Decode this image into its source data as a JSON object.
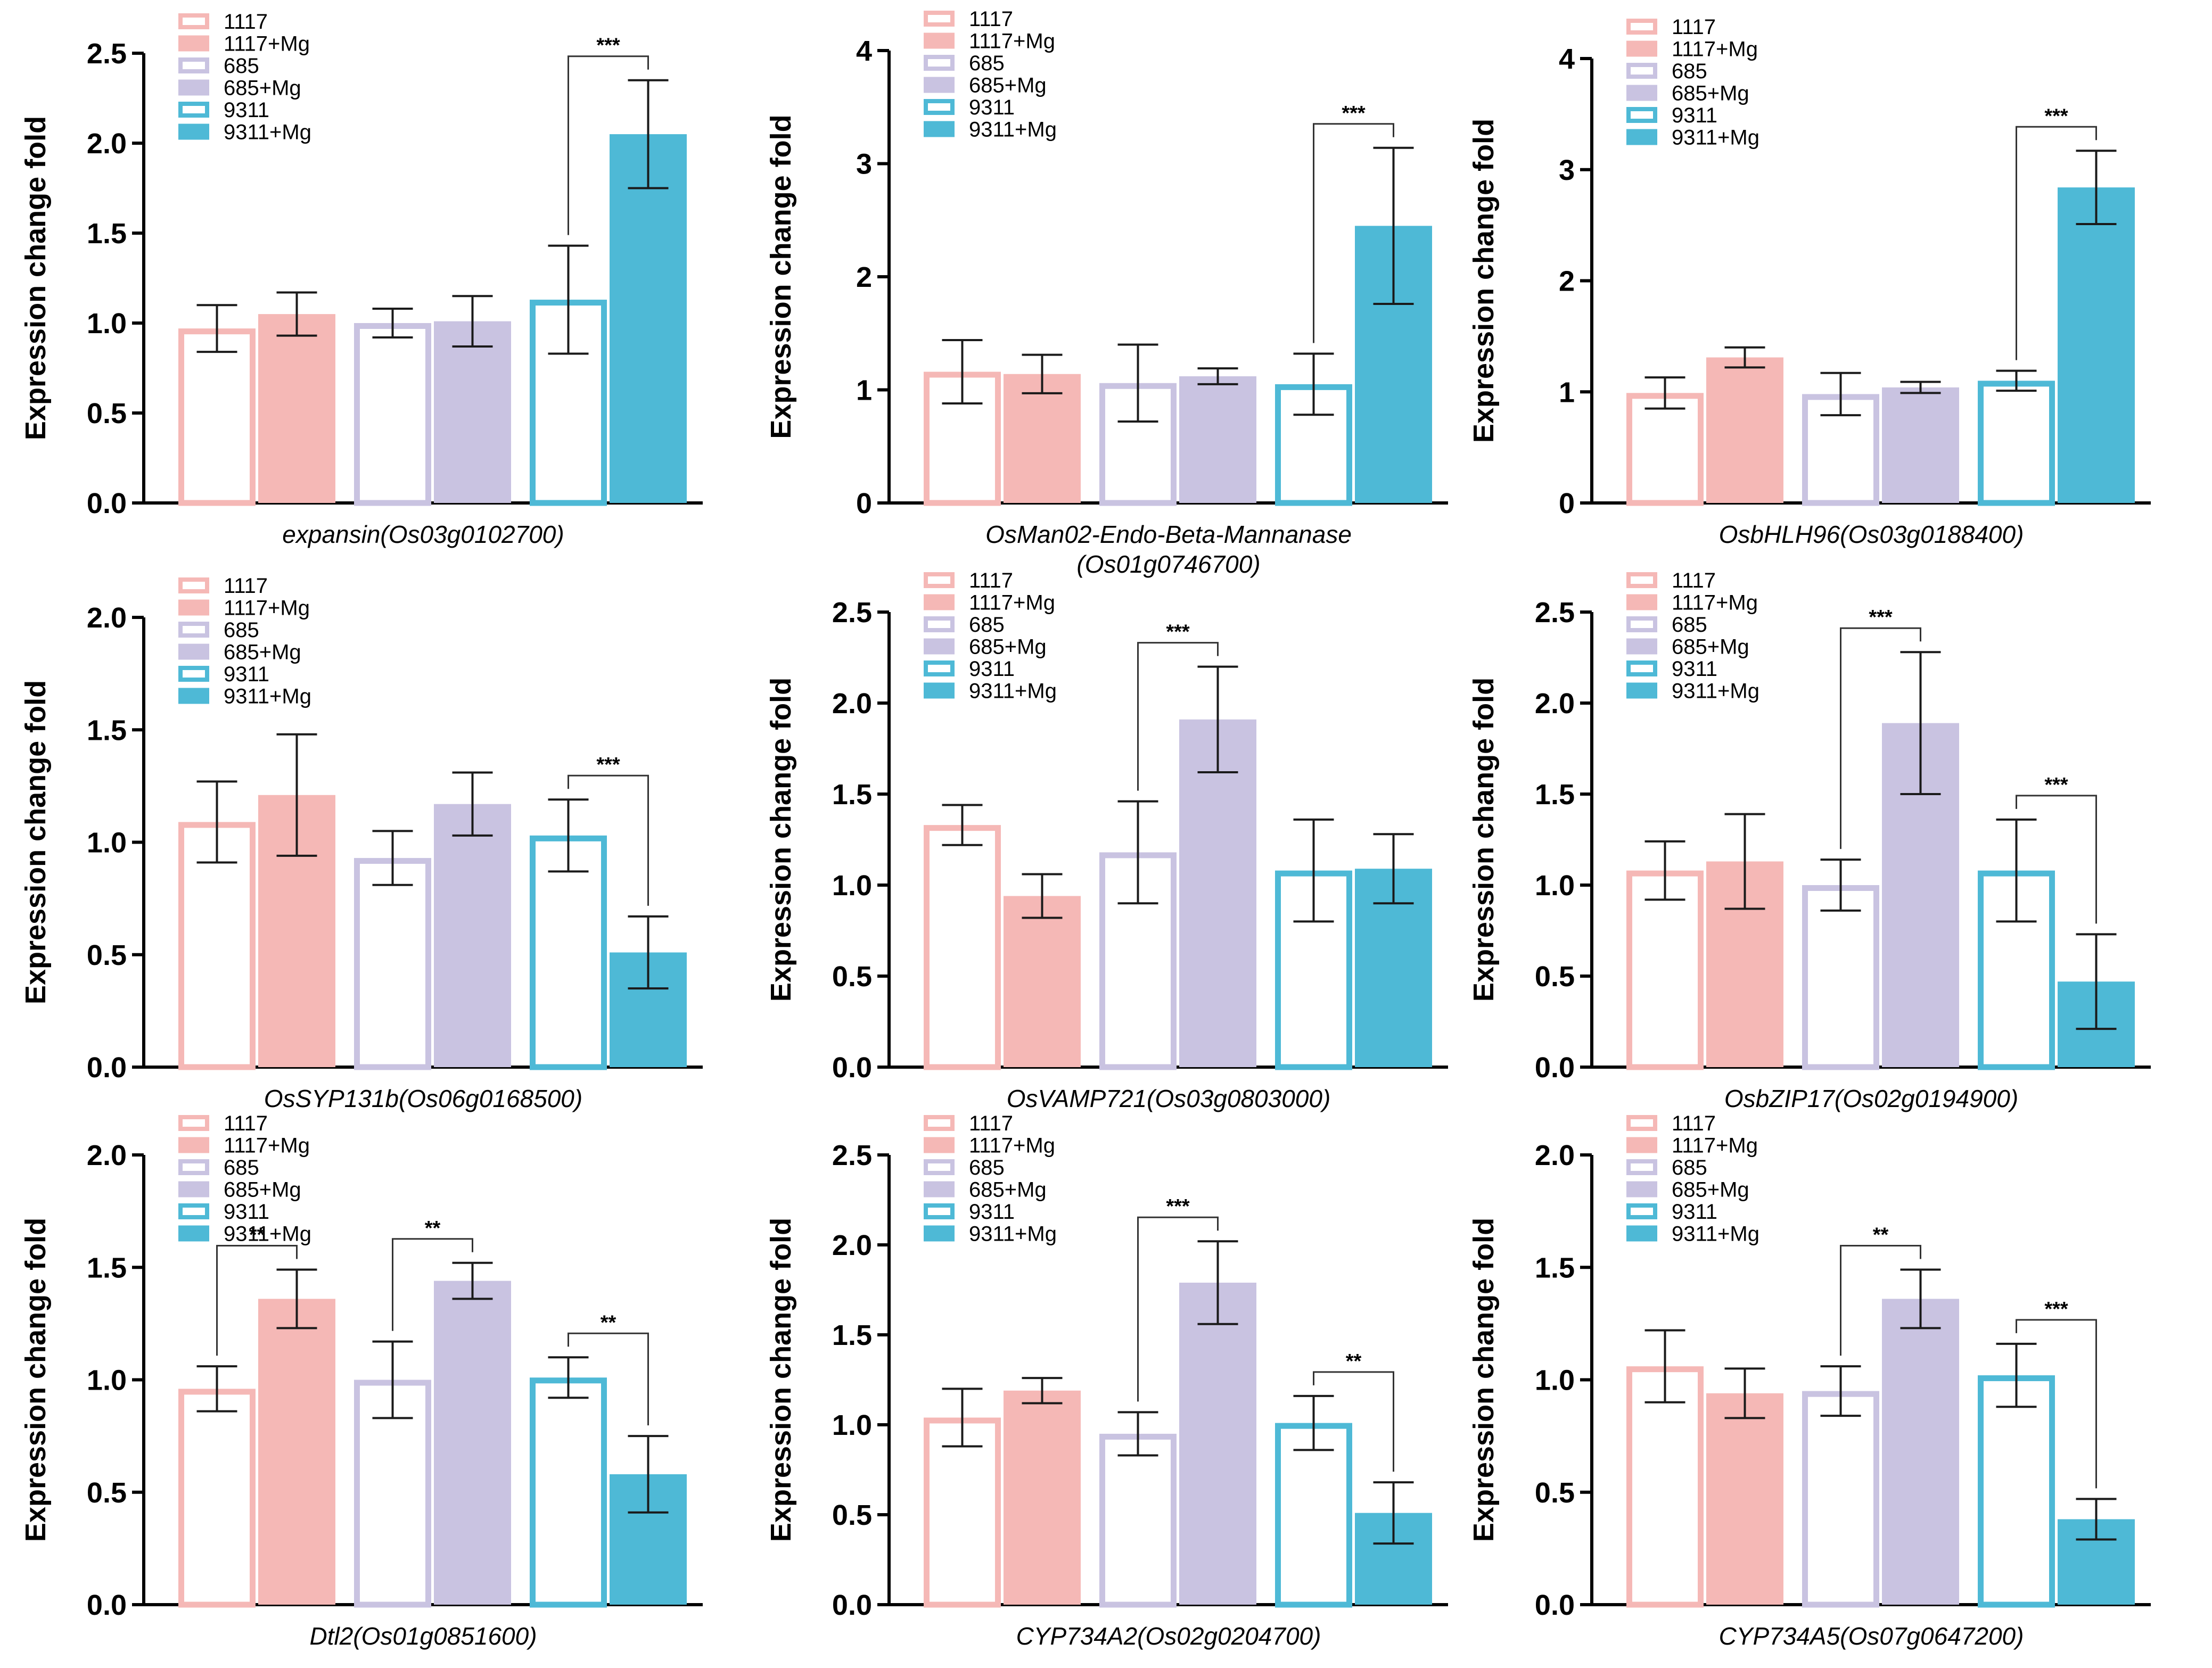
{
  "figure": {
    "description_free": true
  },
  "style": {
    "groups": [
      {
        "name": "1117",
        "color": "#f5b8b6"
      },
      {
        "name": "685",
        "color": "#c9c3e1"
      },
      {
        "name": "9311",
        "color": "#4eb9d6"
      }
    ],
    "axis_color": "#000000",
    "error_bar_color": "#1a1a1a"
  },
  "legend_labels": [
    "1117",
    "1117+Mg",
    "685",
    "685+Mg",
    "9311",
    "9311+Mg"
  ],
  "ylabel": "Expression change fold",
  "chart_data": [
    {
      "type": "bar",
      "title": "",
      "xlabel": [
        "expansin(Os03g0102700)"
      ],
      "ylabel": "Expression change fold",
      "categories": [
        "1117",
        "1117+Mg",
        "685",
        "685+Mg",
        "9311",
        "9311+Mg"
      ],
      "values": [
        0.97,
        1.05,
        1.0,
        1.01,
        1.13,
        2.05
      ],
      "errors": [
        0.13,
        0.12,
        0.08,
        0.14,
        0.3,
        0.3
      ],
      "ylim": [
        0,
        2.5
      ],
      "yticks": [
        "0.0",
        "0.5",
        "1.0",
        "1.5",
        "2.0",
        "2.5"
      ],
      "tick_values": [
        0,
        0.5,
        1.0,
        1.5,
        2.0,
        2.5
      ],
      "significance": [
        {
          "from": 4,
          "to": 5,
          "label": "***"
        }
      ]
    },
    {
      "type": "bar",
      "title": "",
      "xlabel": [
        "OsMan02-Endo-Beta-Mannanase",
        "(Os01g0746700)"
      ],
      "ylabel": "Expression change fold",
      "categories": [
        "1117",
        "1117+Mg",
        "685",
        "685+Mg",
        "9311",
        "9311+Mg"
      ],
      "values": [
        1.16,
        1.14,
        1.06,
        1.12,
        1.05,
        2.45
      ],
      "errors": [
        0.28,
        0.17,
        0.34,
        0.07,
        0.27,
        0.69
      ],
      "ylim": [
        0,
        4
      ],
      "yticks": [
        "0",
        "1",
        "2",
        "3",
        "4"
      ],
      "tick_values": [
        0,
        1,
        2,
        3,
        4
      ],
      "significance": [
        {
          "from": 4,
          "to": 5,
          "label": "***"
        }
      ]
    },
    {
      "type": "bar",
      "title": "",
      "xlabel": [
        "OsbHLH96(Os03g0188400)"
      ],
      "ylabel": "Expression change fold",
      "categories": [
        "1117",
        "1117+Mg",
        "685",
        "685+Mg",
        "9311",
        "9311+Mg"
      ],
      "values": [
        0.99,
        1.31,
        0.98,
        1.04,
        1.1,
        2.84
      ],
      "errors": [
        0.14,
        0.09,
        0.19,
        0.05,
        0.09,
        0.33
      ],
      "ylim": [
        0,
        4
      ],
      "yticks": [
        "0",
        "1",
        "2",
        "3",
        "4"
      ],
      "tick_values": [
        0,
        1,
        2,
        3,
        4
      ],
      "significance": [
        {
          "from": 4,
          "to": 5,
          "label": "***"
        }
      ]
    },
    {
      "type": "bar",
      "title": "",
      "xlabel": [
        "OsSYP131b(Os06g0168500)"
      ],
      "ylabel": "Expression change fold",
      "categories": [
        "1117",
        "1117+Mg",
        "685",
        "685+Mg",
        "9311",
        "9311+Mg"
      ],
      "values": [
        1.09,
        1.21,
        0.93,
        1.17,
        1.03,
        0.51
      ],
      "errors": [
        0.18,
        0.27,
        0.12,
        0.14,
        0.16,
        0.16
      ],
      "ylim": [
        0,
        2.0
      ],
      "yticks": [
        "0.0",
        "0.5",
        "1.0",
        "1.5",
        "2.0"
      ],
      "tick_values": [
        0,
        0.5,
        1.0,
        1.5,
        2.0
      ],
      "significance": [
        {
          "from": 4,
          "to": 5,
          "label": "***"
        }
      ]
    },
    {
      "type": "bar",
      "title": "",
      "xlabel": [
        "OsVAMP721(Os03g0803000)"
      ],
      "ylabel": "Expression change fold",
      "categories": [
        "1117",
        "1117+Mg",
        "685",
        "685+Mg",
        "9311",
        "9311+Mg"
      ],
      "values": [
        1.33,
        0.94,
        1.18,
        1.91,
        1.08,
        1.09
      ],
      "errors": [
        0.11,
        0.12,
        0.28,
        0.29,
        0.28,
        0.19
      ],
      "ylim": [
        0,
        2.5
      ],
      "yticks": [
        "0.0",
        "0.5",
        "1.0",
        "1.5",
        "2.0",
        "2.5"
      ],
      "tick_values": [
        0,
        0.5,
        1.0,
        1.5,
        2.0,
        2.5
      ],
      "significance": [
        {
          "from": 2,
          "to": 3,
          "label": "***"
        }
      ]
    },
    {
      "type": "bar",
      "title": "",
      "xlabel": [
        "OsbZIP17(Os02g0194900)"
      ],
      "ylabel": "Expression change fold",
      "categories": [
        "1117",
        "1117+Mg",
        "685",
        "685+Mg",
        "9311",
        "9311+Mg"
      ],
      "values": [
        1.08,
        1.13,
        1.0,
        1.89,
        1.08,
        0.47
      ],
      "errors": [
        0.16,
        0.26,
        0.14,
        0.39,
        0.28,
        0.26
      ],
      "ylim": [
        0,
        2.5
      ],
      "yticks": [
        "0.0",
        "0.5",
        "1.0",
        "1.5",
        "2.0",
        "2.5"
      ],
      "tick_values": [
        0,
        0.5,
        1.0,
        1.5,
        2.0,
        2.5
      ],
      "significance": [
        {
          "from": 2,
          "to": 3,
          "label": "***"
        },
        {
          "from": 4,
          "to": 5,
          "label": "***"
        }
      ]
    },
    {
      "type": "bar",
      "title": "",
      "xlabel": [
        "Dtl2(Os01g0851600)"
      ],
      "ylabel": "Expression change fold",
      "categories": [
        "1117",
        "1117+Mg",
        "685",
        "685+Mg",
        "9311",
        "9311+Mg"
      ],
      "values": [
        0.96,
        1.36,
        1.0,
        1.44,
        1.01,
        0.58
      ],
      "errors": [
        0.1,
        0.13,
        0.17,
        0.08,
        0.09,
        0.17
      ],
      "ylim": [
        0,
        2.0
      ],
      "yticks": [
        "0.0",
        "0.5",
        "1.0",
        "1.5",
        "2.0"
      ],
      "tick_values": [
        0,
        0.5,
        1.0,
        1.5,
        2.0
      ],
      "significance": [
        {
          "from": 0,
          "to": 1,
          "label": "**"
        },
        {
          "from": 2,
          "to": 3,
          "label": "**"
        },
        {
          "from": 4,
          "to": 5,
          "label": "**"
        }
      ]
    },
    {
      "type": "bar",
      "title": "",
      "xlabel": [
        "CYP734A2(Os02g0204700)"
      ],
      "ylabel": "Expression change fold",
      "categories": [
        "1117",
        "1117+Mg",
        "685",
        "685+Mg",
        "9311",
        "9311+Mg"
      ],
      "values": [
        1.04,
        1.19,
        0.95,
        1.79,
        1.01,
        0.51
      ],
      "errors": [
        0.16,
        0.07,
        0.12,
        0.23,
        0.15,
        0.17
      ],
      "ylim": [
        0,
        2.5
      ],
      "yticks": [
        "0.0",
        "0.5",
        "1.0",
        "1.5",
        "2.0",
        "2.5"
      ],
      "tick_values": [
        0,
        0.5,
        1.0,
        1.5,
        2.0,
        2.5
      ],
      "significance": [
        {
          "from": 2,
          "to": 3,
          "label": "***"
        },
        {
          "from": 4,
          "to": 5,
          "label": "**"
        }
      ]
    },
    {
      "type": "bar",
      "title": "",
      "xlabel": [
        "CYP734A5(Os07g0647200)"
      ],
      "ylabel": "Expression change fold",
      "categories": [
        "1117",
        "1117+Mg",
        "685",
        "685+Mg",
        "9311",
        "9311+Mg"
      ],
      "values": [
        1.06,
        0.94,
        0.95,
        1.36,
        1.02,
        0.38
      ],
      "errors": [
        0.16,
        0.11,
        0.11,
        0.13,
        0.14,
        0.09
      ],
      "ylim": [
        0,
        2.0
      ],
      "yticks": [
        "0.0",
        "0.5",
        "1.0",
        "1.5",
        "2.0"
      ],
      "tick_values": [
        0,
        0.5,
        1.0,
        1.5,
        2.0
      ],
      "significance": [
        {
          "from": 2,
          "to": 3,
          "label": "**"
        },
        {
          "from": 4,
          "to": 5,
          "label": "***"
        }
      ]
    }
  ]
}
